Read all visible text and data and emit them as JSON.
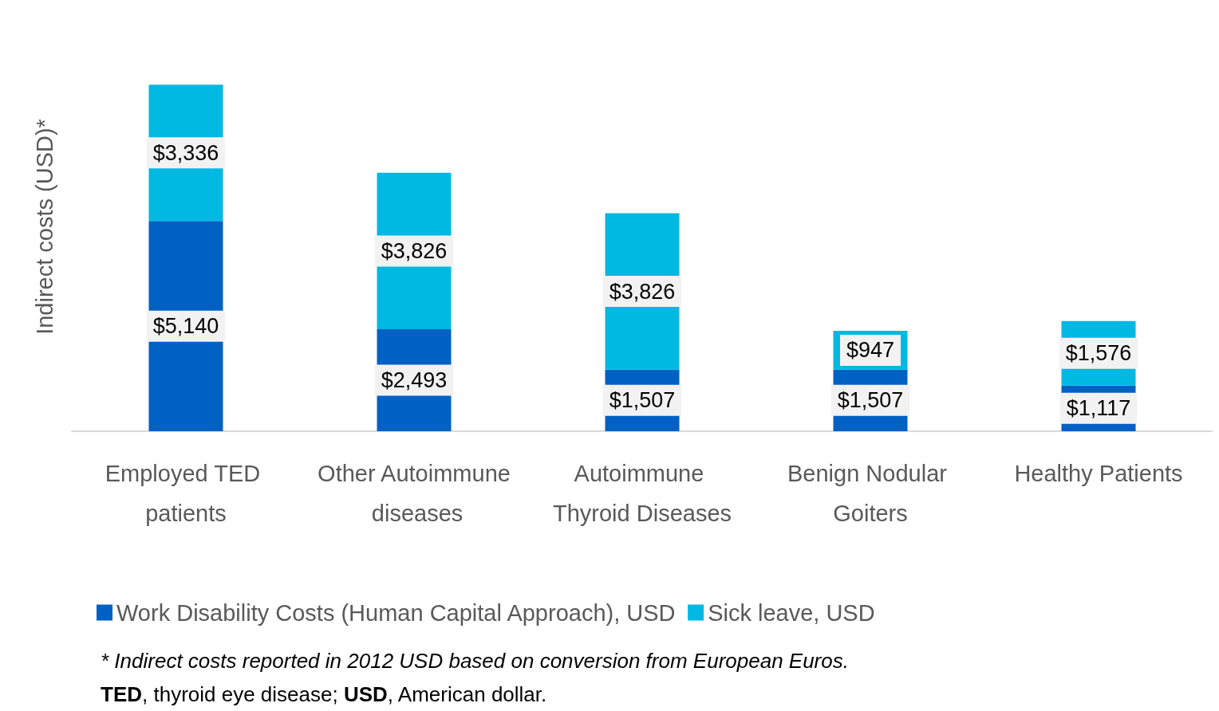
{
  "chart_data": {
    "type": "bar",
    "stacked": true,
    "ylabel": "Indirect costs (USD)*",
    "categories": [
      "Employed TED patients",
      "Other Autoimmune diseases",
      "Autoimmune Thyroid Diseases",
      "Benign Nodular Goiters",
      "Healthy Patients"
    ],
    "series": [
      {
        "name": "Work Disability Costs (Human Capital Approach), USD",
        "color": "#0061c4",
        "values": [
          5140,
          2493,
          1507,
          1507,
          1117
        ],
        "value_labels": [
          "$5,140",
          "$2,493",
          "$1,507",
          "$1,507",
          "$1,117"
        ]
      },
      {
        "name": "Sick leave, USD",
        "color": "#00b9e3",
        "values": [
          3336,
          3826,
          3826,
          947,
          1576
        ],
        "value_labels": [
          "$3,336",
          "$3,826",
          "$3,826",
          "$947",
          "$1,576"
        ]
      }
    ],
    "legend": "bottom",
    "tick_labels": "x",
    "grid": false,
    "annotations": [
      "* Indirect costs reported in 2012 USD based on conversion from European Euros.",
      "TED, thyroid eye disease; USD, American dollar."
    ]
  }
}
